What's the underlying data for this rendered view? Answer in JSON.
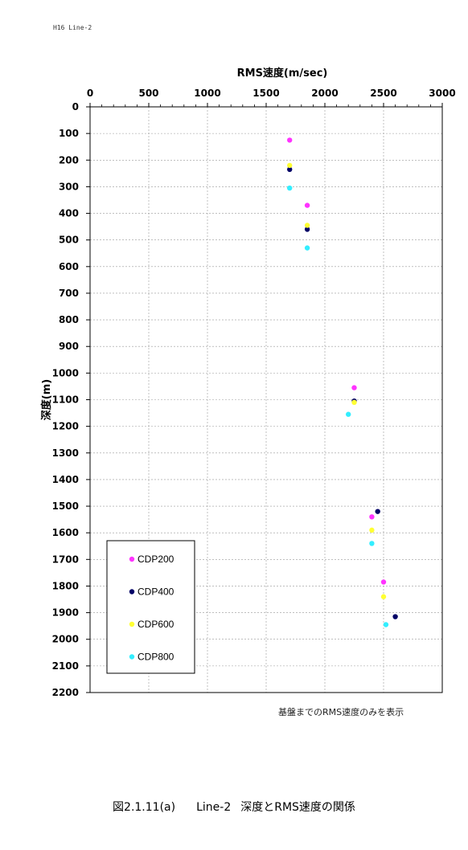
{
  "header_label": "H16  Line-2",
  "note": "基盤までのRMS速度のみを表示",
  "caption": {
    "figure_no": "図2.1.11(a)",
    "line": "Line-2",
    "title": "深度とRMS速度の関係"
  },
  "chart_data": {
    "type": "scatter",
    "title": "",
    "xlabel": "RMS速度(m/sec)",
    "ylabel": "深度(m)",
    "x_axis_position": "top",
    "y_axis_inverted": true,
    "xlim": [
      0,
      3000
    ],
    "ylim": [
      0,
      2200
    ],
    "xticks": [
      0,
      500,
      1000,
      1500,
      2000,
      2500,
      3000
    ],
    "yticks": [
      0,
      100,
      200,
      300,
      400,
      500,
      600,
      700,
      800,
      900,
      1000,
      1100,
      1200,
      1300,
      1400,
      1500,
      1600,
      1700,
      1800,
      1900,
      2000,
      2100,
      2200
    ],
    "grid": true,
    "legend_position": "bottom-left",
    "series": [
      {
        "name": "CDP200",
        "color": "#ff33ff",
        "points": [
          [
            1700,
            125
          ],
          [
            1850,
            370
          ],
          [
            2250,
            1055
          ],
          [
            2400,
            1540
          ],
          [
            2500,
            1785
          ]
        ]
      },
      {
        "name": "CDP400",
        "color": "#000066",
        "points": [
          [
            1700,
            235
          ],
          [
            1850,
            460
          ],
          [
            2250,
            1105
          ],
          [
            2450,
            1520
          ],
          [
            2600,
            1915
          ]
        ]
      },
      {
        "name": "CDP600",
        "color": "#ffff33",
        "points": [
          [
            1700,
            220
          ],
          [
            1850,
            445
          ],
          [
            2250,
            1110
          ],
          [
            2400,
            1590
          ],
          [
            2500,
            1840
          ]
        ]
      },
      {
        "name": "CDP800",
        "color": "#33eeff",
        "points": [
          [
            1700,
            305
          ],
          [
            1850,
            530
          ],
          [
            2200,
            1155
          ],
          [
            2400,
            1640
          ],
          [
            2520,
            1945
          ]
        ]
      }
    ]
  }
}
